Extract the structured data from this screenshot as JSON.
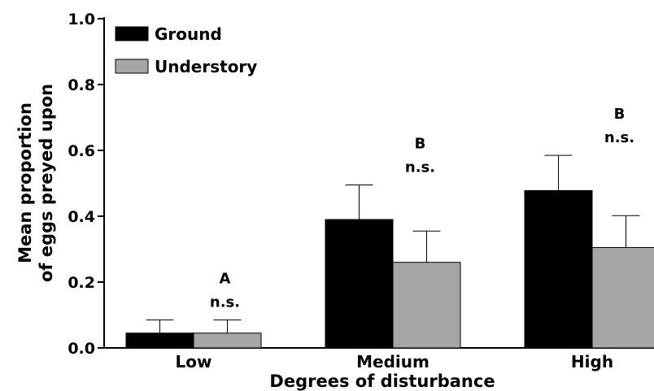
{
  "chart_data": {
    "type": "bar",
    "title": "",
    "xlabel": "Degrees of disturbance",
    "ylabel_line1": "Mean proportion",
    "ylabel_line2": "of eggs preyed upon",
    "ylim": [
      0,
      1.0
    ],
    "yticks": [
      "0.0",
      "0.2",
      "0.4",
      "0.6",
      "0.8",
      "1.0"
    ],
    "categories": [
      "Low",
      "Medium",
      "High"
    ],
    "series": [
      {
        "name": "Ground",
        "color": "#000000",
        "values": [
          0.045,
          0.39,
          0.478
        ],
        "errors": [
          0.04,
          0.105,
          0.107
        ]
      },
      {
        "name": "Understory",
        "color": "#a6a6a6",
        "values": [
          0.045,
          0.26,
          0.305
        ],
        "errors": [
          0.04,
          0.095,
          0.097
        ]
      }
    ],
    "group_letters": [
      "A",
      "B",
      "B"
    ],
    "group_tests": [
      "n.s.",
      "n.s.",
      "n.s."
    ],
    "grid": false,
    "legend_position": "top-left"
  }
}
